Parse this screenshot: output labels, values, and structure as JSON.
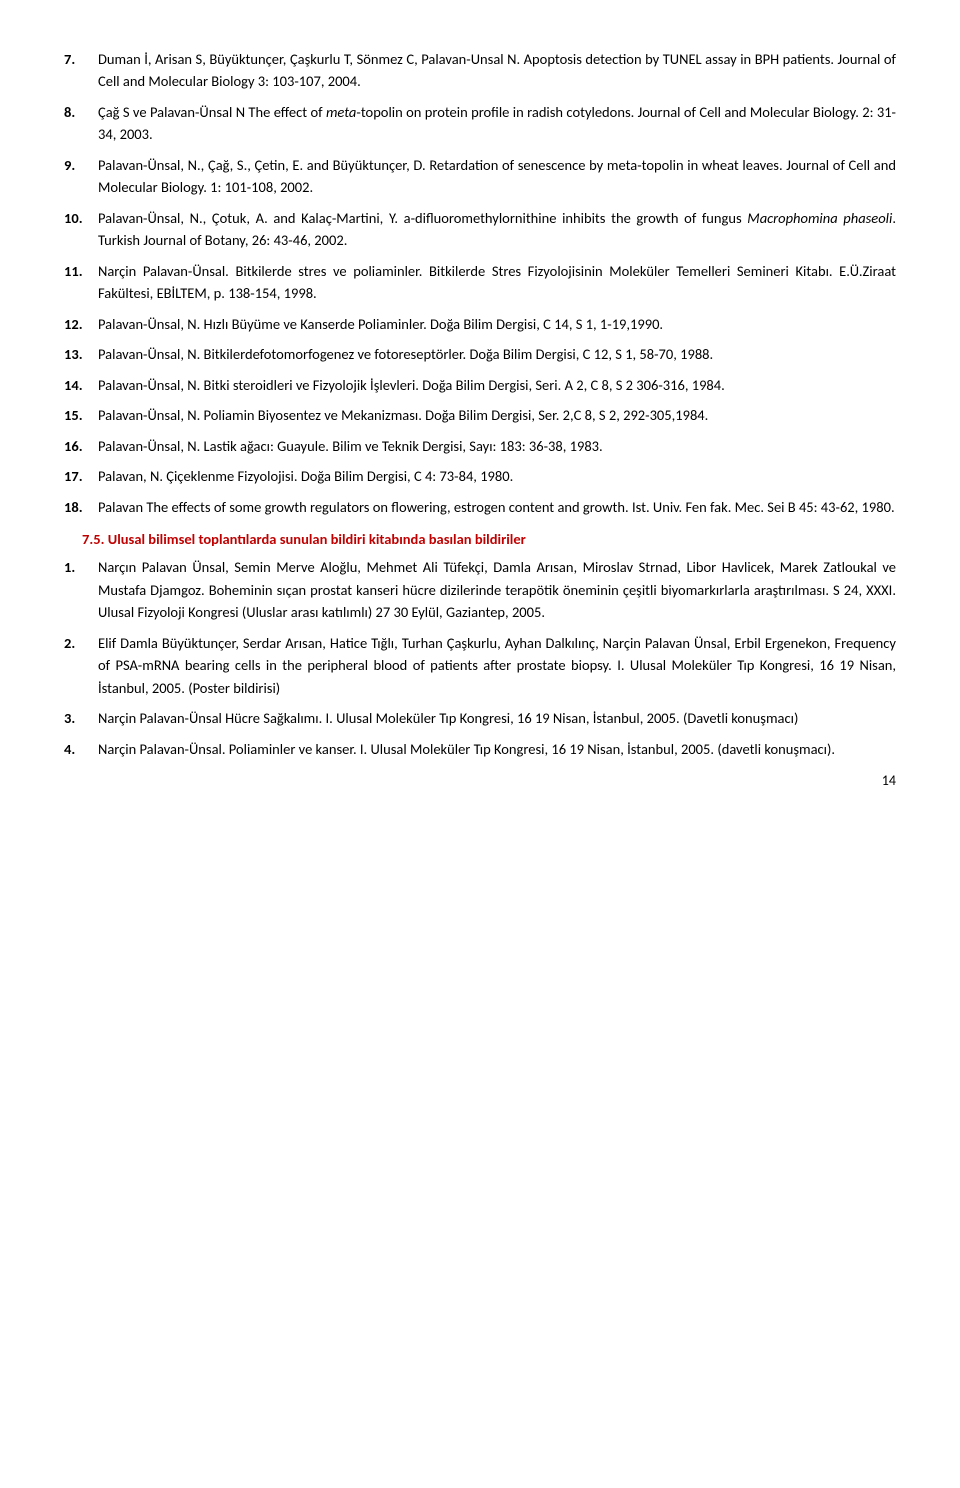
{
  "refs": [
    {
      "pre": "Duman İ, Arisan S, Büyüktunçer, Çaşkurlu T, Sönmez C, Palavan-Unsal N. Apoptosis detection by TUNEL assay in BPH patients. Journal of Cell and Molecular Biology 3: 103-107, 2004."
    },
    {
      "pre": "Çağ S ve Palavan-Ünsal N The effect of ",
      "it": "meta",
      "post": "-topolin on protein profile in radish cotyledons. Journal of Cell and Molecular Biology. 2: 31-34, 2003."
    },
    {
      "pre": "Palavan-Ünsal, N., Çağ, S., Çetin, E. and Büyüktunçer, D. Retardation of senescence by meta-topolin in wheat leaves. Journal of Cell and Molecular Biology. 1: 101-108, 2002."
    },
    {
      "pre": "Palavan-Ünsal, N., Çotuk, A. and Kalaç-Martini, Y. a-difluoromethylornithine inhibits the growth of fungus ",
      "it": "Macrophomina phaseoli",
      "post": ". Turkish Journal of Botany, 26: 43-46, 2002."
    },
    {
      "pre": "Narçin Palavan-Ünsal. Bitkilerde stres ve poliaminler. Bitkilerde Stres Fizyolojisinin Moleküler Temelleri Semineri Kitabı. E.Ü.Ziraat Fakültesi, EBİLTEM, p. 138-154, 1998."
    },
    {
      "pre": "Palavan-Ünsal, N. Hızlı Büyüme ve Kanserde Poliaminler. Doğa Bilim Dergisi, C 14, S 1, 1-19,1990."
    },
    {
      "pre": "Palavan-Ünsal, N. Bitkilerdefotomorfogenez ve fotoreseptörler. Doğa Bilim Dergisi, C 12, S 1, 58-70, 1988."
    },
    {
      "pre": "Palavan-Ünsal, N. Bitki steroidleri ve Fizyolojik İşlevleri. Doğa Bilim Dergisi, Seri. A 2, C 8, S 2 306-316, 1984."
    },
    {
      "pre": "Palavan-Ünsal, N. Poliamin Biyosentez ve Mekanizması. Doğa Bilim Dergisi, Ser. 2,C 8, S 2, 292-305,1984."
    },
    {
      "pre": "Palavan-Ünsal, N. Lastik ağacı: Guayule. Bilim ve Teknik Dergisi, Sayı: 183: 36-38, 1983."
    },
    {
      "pre": "Palavan, N. Çiçeklenme Fizyolojisi. Doğa Bilim Dergisi, C 4: 73-84, 1980."
    },
    {
      "pre": "Palavan The effects of some growth regulators on flowering, estrogen content and growth. Ist. Univ. Fen fak. Mec. Sei B 45: 43-62, 1980."
    }
  ],
  "section": "7.5. Ulusal bilimsel toplantılarda sunulan bildiri kitabında basılan bildiriler",
  "subs": [
    "Narçın Palavan Ünsal, Semin Merve Aloğlu, Mehmet Ali Tüfekçi, Damla Arısan, Miroslav Strnad, Libor Havlicek, Marek Zatloukal ve Mustafa Djamgoz. Boheminin sıçan prostat kanseri hücre dizilerinde terapötik öneminin çeşitli biyomarkırlarla araştırılması. S 24, XXXI. Ulusal Fizyoloji Kongresi (Uluslar arası katılımlı) 27 30 Eylül, Gaziantep, 2005.",
    "Elif Damla Büyüktunçer, Serdar Arısan, Hatice Tığlı, Turhan Çaşkurlu, Ayhan Dalkılınç, Narçin Palavan Ünsal, Erbil Ergenekon, Frequency of PSA-mRNA bearing cells in the peripheral blood of patients after prostate biopsy. I. Ulusal Moleküler Tıp Kongresi, 16 19 Nisan, İstanbul, 2005. (Poster bildirisi)",
    "Narçin Palavan-Ünsal Hücre Sağkalımı. I. Ulusal Moleküler Tıp Kongresi, 16 19 Nisan, İstanbul, 2005. (Davetli konuşmacı)",
    "Narçin Palavan-Ünsal. Poliaminler ve kanser. I. Ulusal Moleküler Tıp Kongresi, 16 19 Nisan, İstanbul, 2005. (davetli konuşmacı)."
  ],
  "pagenum": "14",
  "colors": {
    "heading": "#c00000"
  }
}
